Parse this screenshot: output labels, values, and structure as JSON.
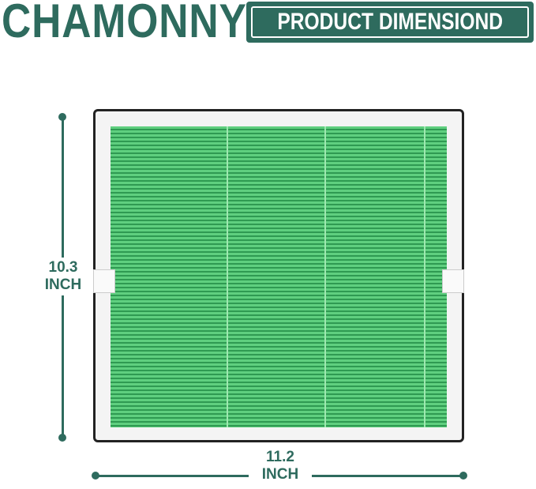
{
  "brand": "CHAMONNY",
  "header_badge": "PRODUCT DIMENSIOND",
  "height_dimension": {
    "value": "10.3",
    "unit": "INCH"
  },
  "width_dimension": {
    "value": "11.2",
    "unit": "INCH"
  },
  "colors": {
    "brand": "#2e6b5e",
    "filter_media": "#4cc070"
  }
}
